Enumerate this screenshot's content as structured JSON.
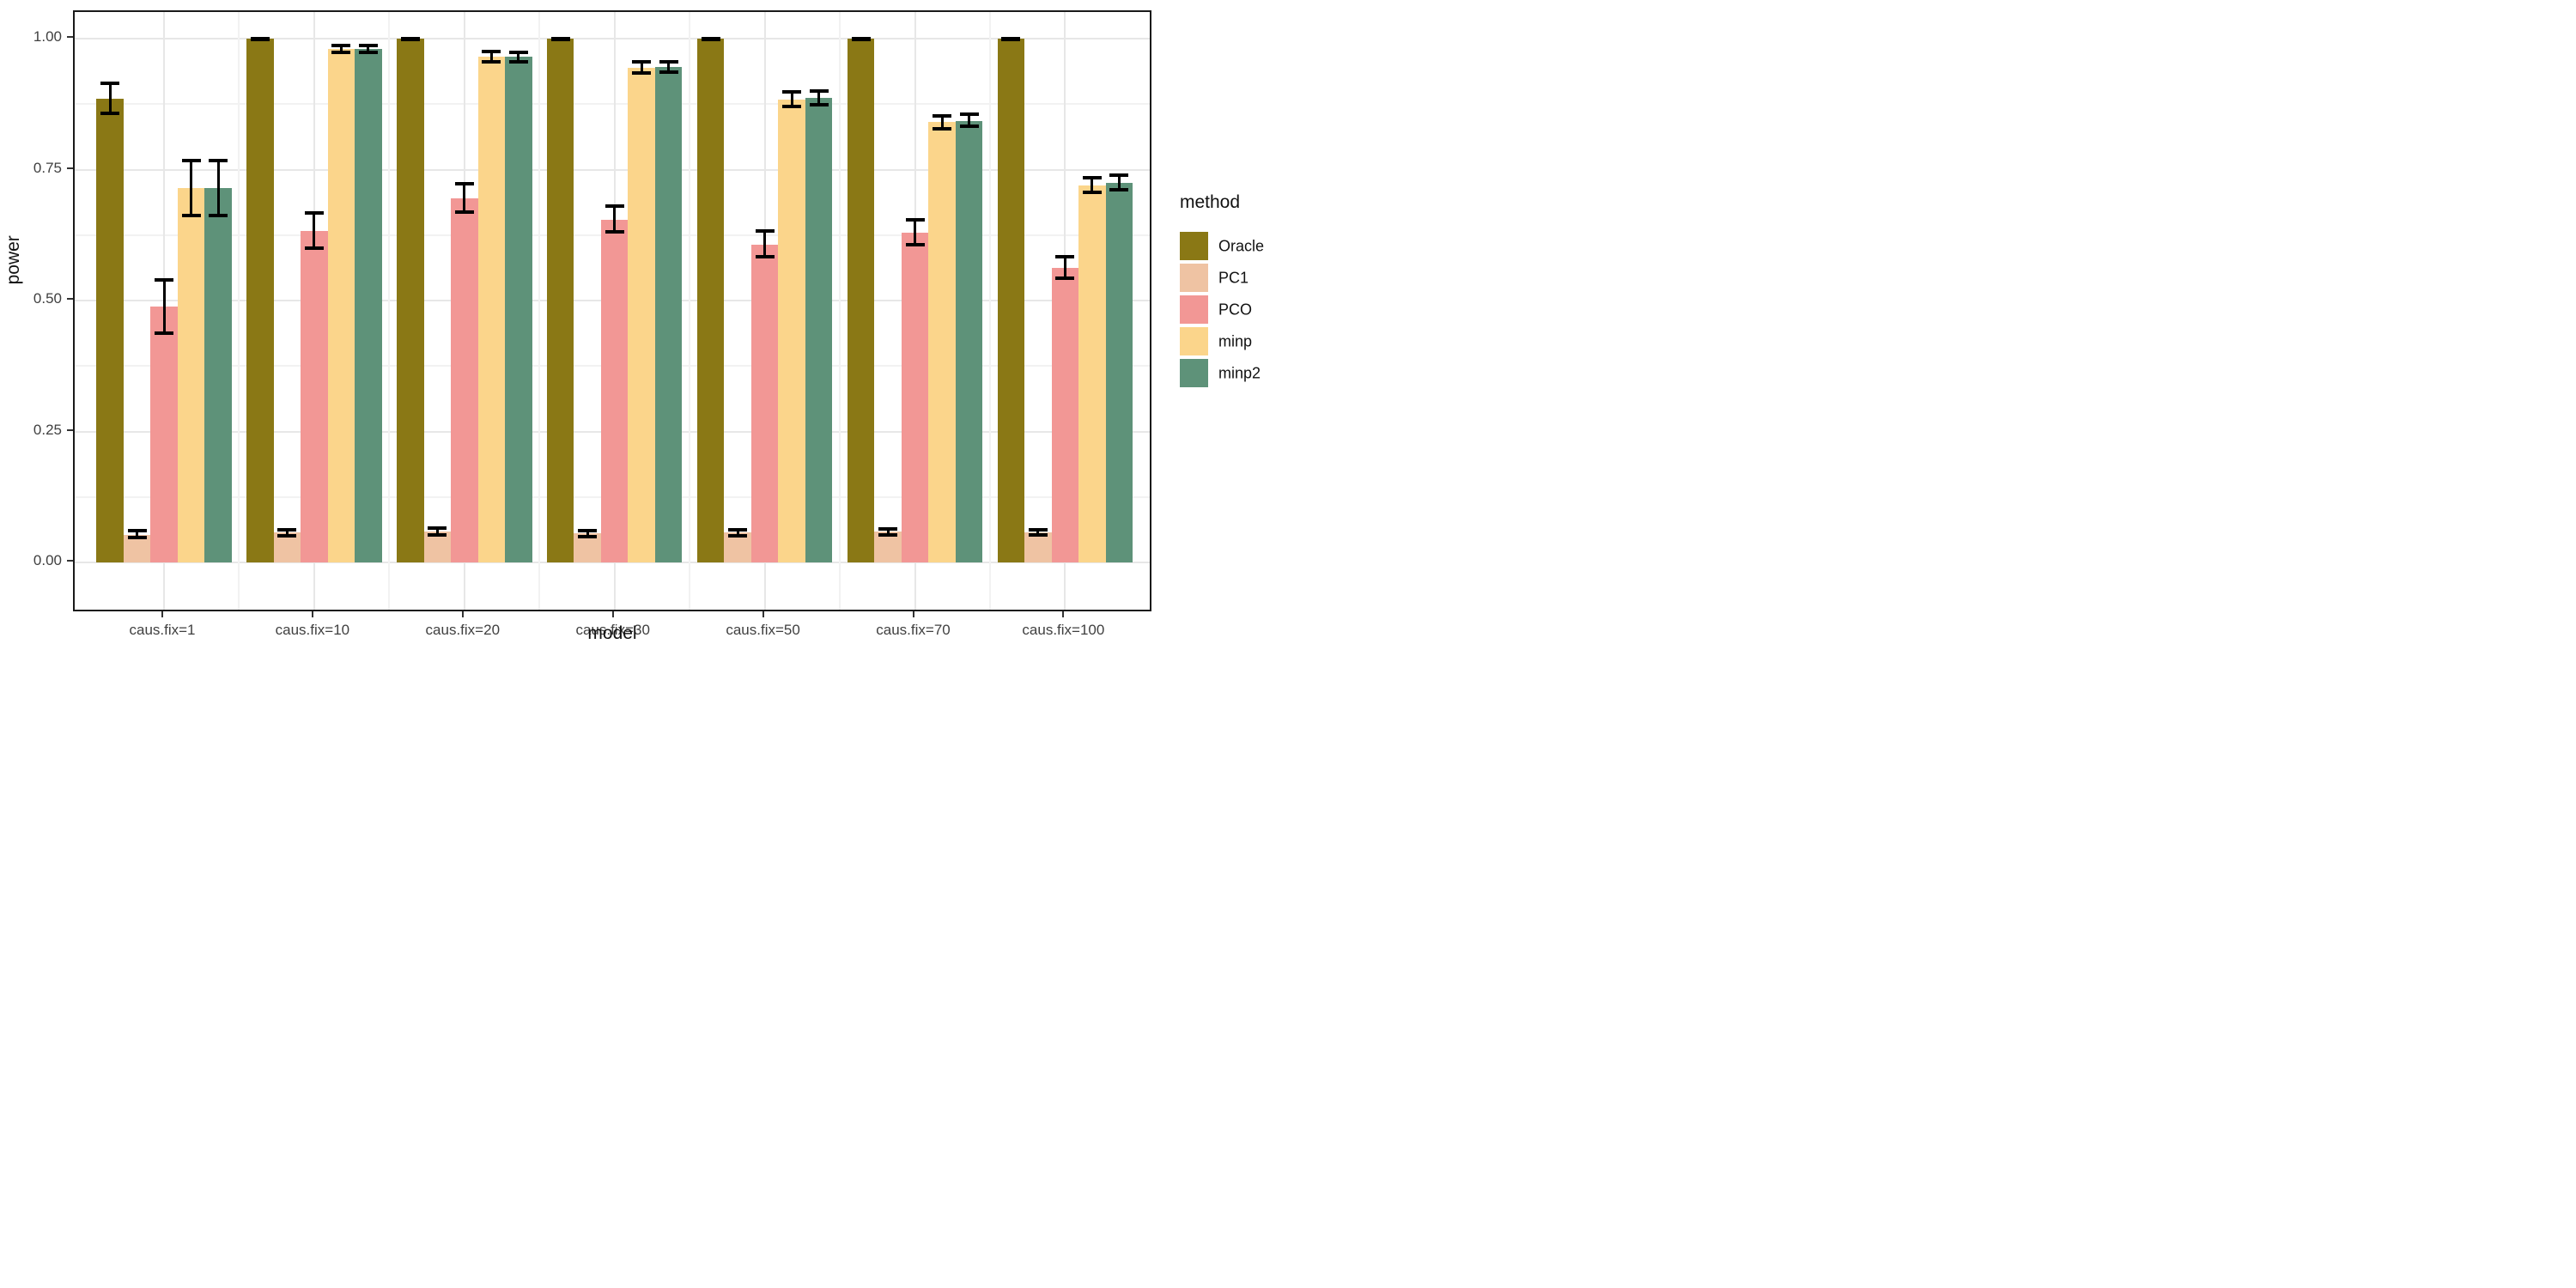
{
  "axes": {
    "x_title": "model",
    "y_title": "power",
    "y_tick_labels": [
      "1.00",
      "0.75",
      "0.50",
      "0.25",
      "0.00"
    ],
    "y_tick_values": [
      1.0,
      0.75,
      0.5,
      0.25,
      0.0
    ],
    "y_minor_values": [
      0.875,
      0.625,
      0.375,
      0.125
    ]
  },
  "legend": {
    "title": "method",
    "items": [
      {
        "label": "Oracle",
        "color": "#8a7815"
      },
      {
        "label": "PC1",
        "color": "#efc3a3"
      },
      {
        "label": "PCO",
        "color": "#f29795"
      },
      {
        "label": "minp",
        "color": "#fbd58b"
      },
      {
        "label": "minp2",
        "color": "#5e9279"
      }
    ]
  },
  "chart_data": {
    "type": "bar",
    "title": "",
    "xlabel": "model",
    "ylabel": "power",
    "ylim": [
      0,
      1.05
    ],
    "grid": "on",
    "legend_position": "right",
    "error_bars": true,
    "categories": [
      "caus.fix=1",
      "caus.fix=10",
      "caus.fix=20",
      "caus.fix=30",
      "caus.fix=50",
      "caus.fix=70",
      "caus.fix=100"
    ],
    "series": [
      {
        "name": "Oracle",
        "color": "#8a7815",
        "values": [
          0.885,
          1.0,
          1.0,
          1.0,
          1.0,
          1.0,
          1.0
        ],
        "ci_low": [
          0.857,
          0.998,
          0.998,
          0.998,
          0.998,
          0.998,
          0.998
        ],
        "ci_high": [
          0.915,
          1.0,
          1.0,
          1.0,
          1.0,
          1.0,
          1.0
        ]
      },
      {
        "name": "PC1",
        "color": "#efc3a3",
        "values": [
          0.053,
          0.057,
          0.059,
          0.056,
          0.057,
          0.059,
          0.057
        ],
        "ci_low": [
          0.047,
          0.051,
          0.053,
          0.05,
          0.051,
          0.053,
          0.052
        ],
        "ci_high": [
          0.06,
          0.062,
          0.065,
          0.061,
          0.062,
          0.064,
          0.063
        ]
      },
      {
        "name": "PCO",
        "color": "#f29795",
        "values": [
          0.488,
          0.633,
          0.695,
          0.654,
          0.607,
          0.63,
          0.562
        ],
        "ci_low": [
          0.438,
          0.6,
          0.669,
          0.631,
          0.584,
          0.607,
          0.542
        ],
        "ci_high": [
          0.54,
          0.668,
          0.723,
          0.68,
          0.632,
          0.654,
          0.583
        ]
      },
      {
        "name": "minp",
        "color": "#fbd58b",
        "values": [
          0.714,
          0.98,
          0.965,
          0.945,
          0.883,
          0.841,
          0.719
        ],
        "ci_low": [
          0.662,
          0.973,
          0.956,
          0.934,
          0.871,
          0.828,
          0.707
        ],
        "ci_high": [
          0.767,
          0.987,
          0.976,
          0.956,
          0.899,
          0.853,
          0.734
        ]
      },
      {
        "name": "minp2",
        "color": "#5e9279",
        "values": [
          0.715,
          0.98,
          0.966,
          0.946,
          0.887,
          0.843,
          0.724
        ],
        "ci_low": [
          0.662,
          0.973,
          0.956,
          0.936,
          0.873,
          0.832,
          0.711
        ],
        "ci_high": [
          0.768,
          0.987,
          0.974,
          0.955,
          0.9,
          0.856,
          0.739
        ]
      }
    ]
  }
}
